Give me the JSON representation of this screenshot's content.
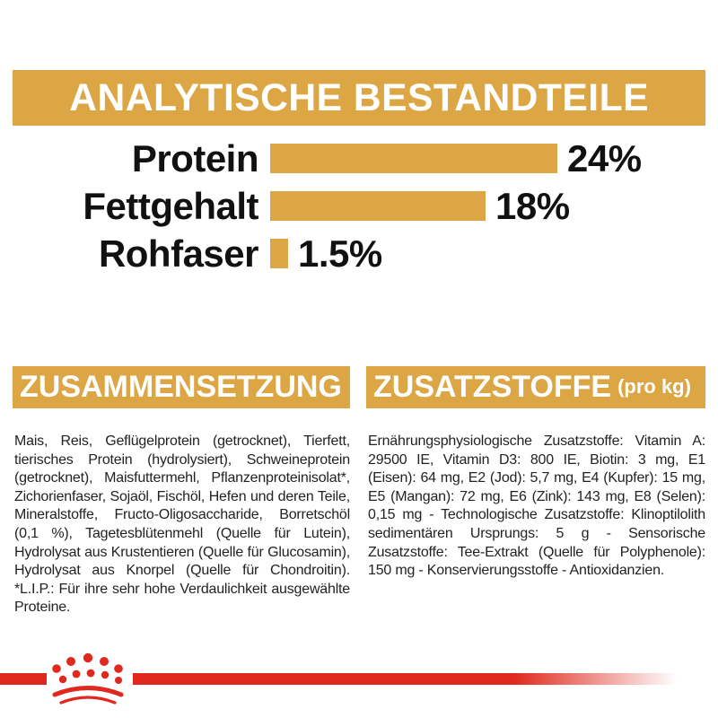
{
  "colors": {
    "gold": "#DCA645",
    "red": "#E0281E",
    "heading_text": "#FFFFFF",
    "body_text": "#222222"
  },
  "analytical": {
    "title": "ANALYTISCHE BESTANDTEILE"
  },
  "chart_data": {
    "type": "bar",
    "orientation": "horizontal",
    "title": "ANALYTISCHE BESTANDTEILE",
    "categories": [
      "Protein",
      "Fettgehalt",
      "Rohfaser"
    ],
    "values": [
      24,
      18,
      1.5
    ],
    "value_labels": [
      "24%",
      "18%",
      "1.5%"
    ],
    "xlabel": "",
    "ylabel": "",
    "xlim": [
      0,
      24
    ],
    "bar_color": "#DCA645",
    "grid": false,
    "legend": false
  },
  "composition": {
    "title": "ZUSAMMENSETZUNG",
    "body": "Mais, Reis, Geflügelprotein (getrocknet), Tierfett, tierisches Protein (hydrolysiert), Schweineprotein (getrocknet), Maisfuttermehl, Pflanzenproteinisolat*, Zichorienfaser, Sojaöl, Fischöl, Hefen und deren Teile, Mineralstoffe, Fructo-Oligosaccharide, Borretschöl (0,1 %), Tagetesblütenmehl (Quelle für Lutein), Hydrolysat aus Krustentieren (Quelle für Glucosamin), Hydrolysat aus Knorpel (Quelle für Chondroitin). *L.I.P.: Für ihre sehr hohe Verdaulichkeit ausgewählte Proteine."
  },
  "additives": {
    "title": "ZUSATZSTOFFE",
    "title_suffix": "(pro kg)",
    "body": "Ernährungsphysiologische Zusatzstoffe: Vitamin A: 29500 IE, Vitamin D3: 800 IE, Biotin: 3 mg, E1 (Eisen): 64 mg, E2 (Jod): 5,7 mg, E4 (Kupfer): 15 mg, E5 (Mangan): 72 mg, E6 (Zink): 143 mg, E8 (Selen): 0,15 mg - Technologische Zusatzstoffe: Klinoptilolith sedimentären Ursprungs: 5 g - Sensorische Zusatzstoffe: Tee-Extrakt (Quelle für Polyphenole): 150 mg - Konservierungsstoffe - Antioxidanzien."
  },
  "footer": {
    "logo": "royal-canin-crown"
  }
}
